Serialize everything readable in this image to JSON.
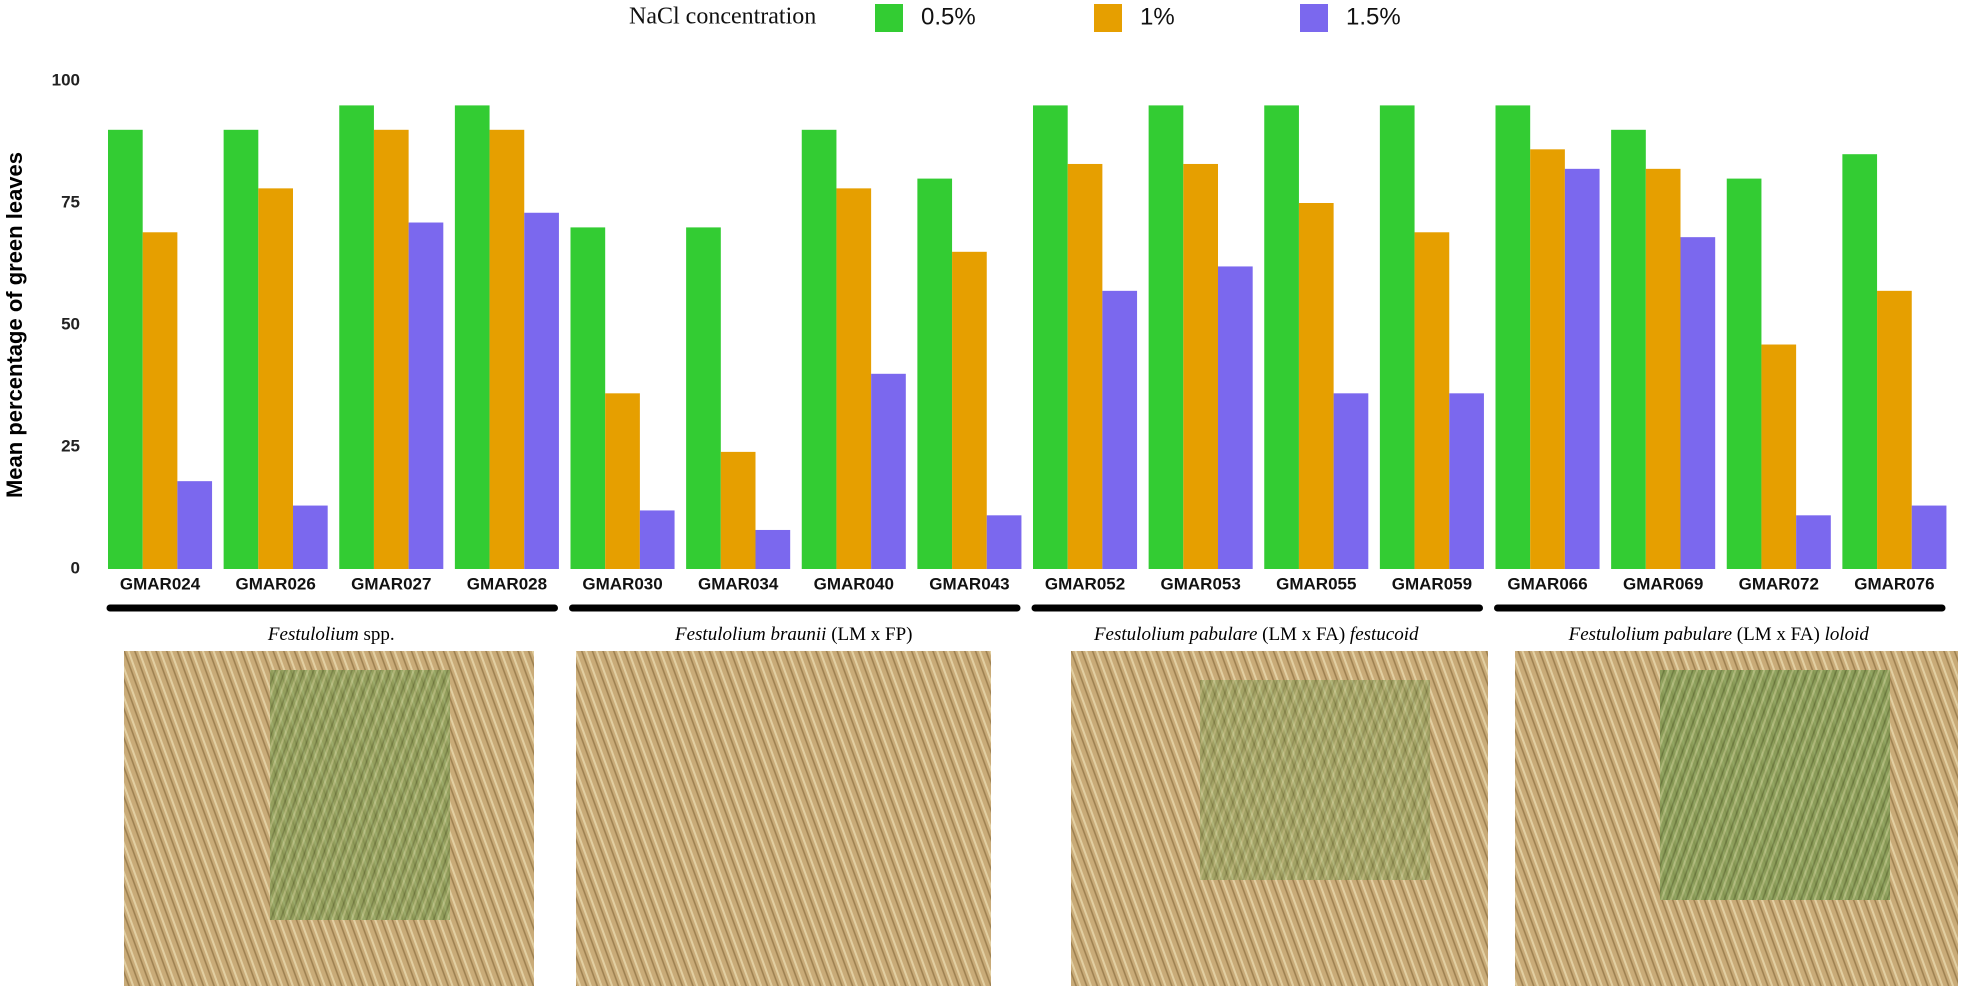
{
  "chart_data": {
    "type": "bar",
    "legend_title": "NaCl concentration",
    "y_label": "Mean percentage of green leaves",
    "categories": [
      "GMAR024",
      "GMAR026",
      "GMAR027",
      "GMAR028",
      "GMAR030",
      "GMAR034",
      "GMAR040",
      "GMAR043",
      "GMAR052",
      "GMAR053",
      "GMAR055",
      "GMAR059",
      "GMAR066",
      "GMAR069",
      "GMAR072",
      "GMAR076"
    ],
    "series": [
      {
        "name": "0.5%",
        "color": "#33cc33",
        "values": [
          90,
          90,
          95,
          95,
          70,
          70,
          90,
          80,
          95,
          95,
          95,
          95,
          95,
          90,
          80,
          85
        ]
      },
      {
        "name": "1%",
        "color": "#e69f00",
        "values": [
          69,
          78,
          90,
          90,
          36,
          24,
          78,
          65,
          83,
          83,
          75,
          69,
          86,
          82,
          46,
          57
        ]
      },
      {
        "name": "1.5%",
        "color": "#7b68ee",
        "values": [
          18,
          13,
          71,
          73,
          12,
          8,
          40,
          11,
          57,
          62,
          36,
          36,
          82,
          68,
          11,
          13
        ]
      }
    ],
    "group_labels": [
      [
        "Festulolium",
        " spp."
      ],
      [
        "Festulolium braunii",
        " (LM x FP)"
      ],
      [
        "Festulolium pabulare",
        " (LM x FA) ",
        "festucoid"
      ],
      [
        "Festulolium pabulare",
        " (LM x FA) ",
        "loloid"
      ]
    ],
    "ylim": [
      0,
      100
    ],
    "yticks": [
      0,
      25,
      50,
      75,
      100
    ],
    "grid": false
  }
}
